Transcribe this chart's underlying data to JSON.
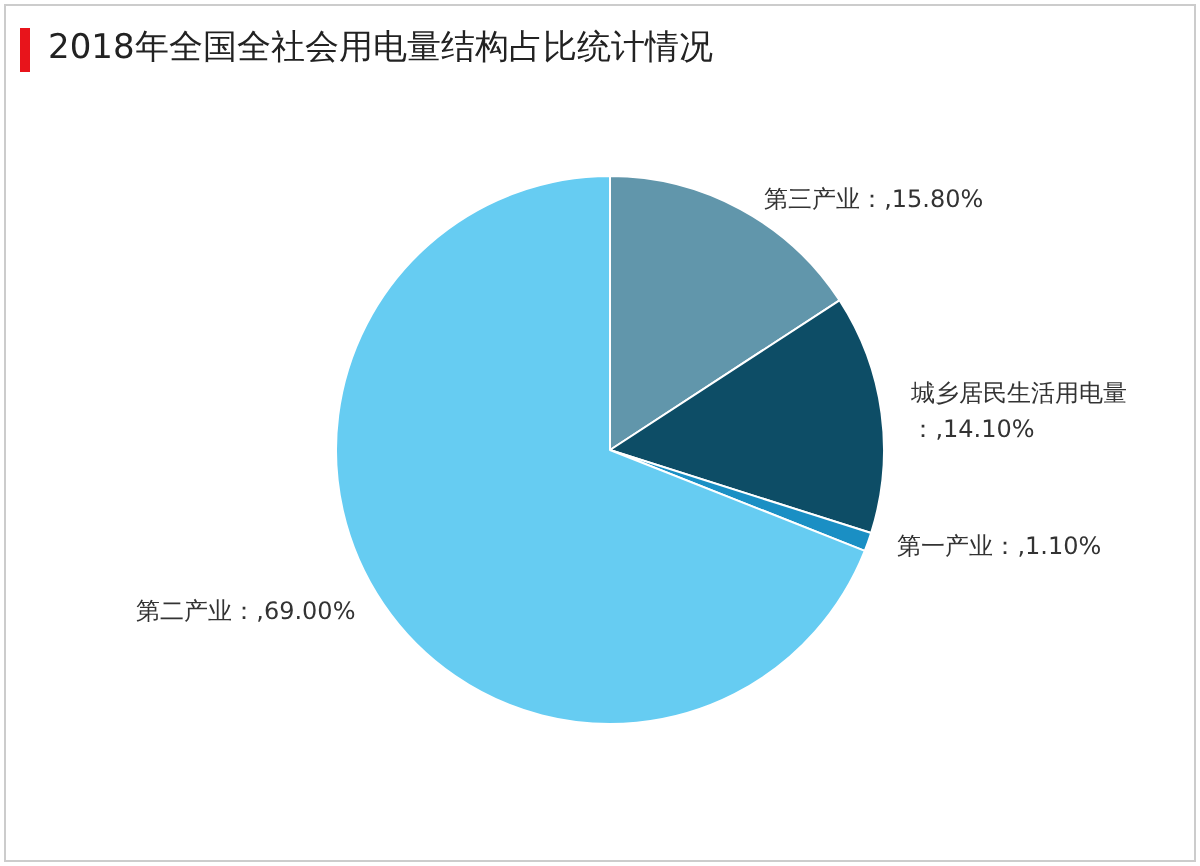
{
  "chart_data": {
    "type": "pie",
    "title": "2018年全国全社会用电量结构占比统计情况",
    "categories": [
      "第三产业",
      "城乡居民生活用电量",
      "第一产业",
      "第二产业"
    ],
    "values": [
      15.8,
      14.1,
      1.1,
      69.0
    ],
    "value_labels": [
      "：,15.80%",
      "：,14.10%",
      "：,1.10%",
      "：,69.00%"
    ],
    "colors": [
      "#6196ab",
      "#0d4d66",
      "#1a8fc4",
      "#66ccf2"
    ],
    "legend": false
  }
}
